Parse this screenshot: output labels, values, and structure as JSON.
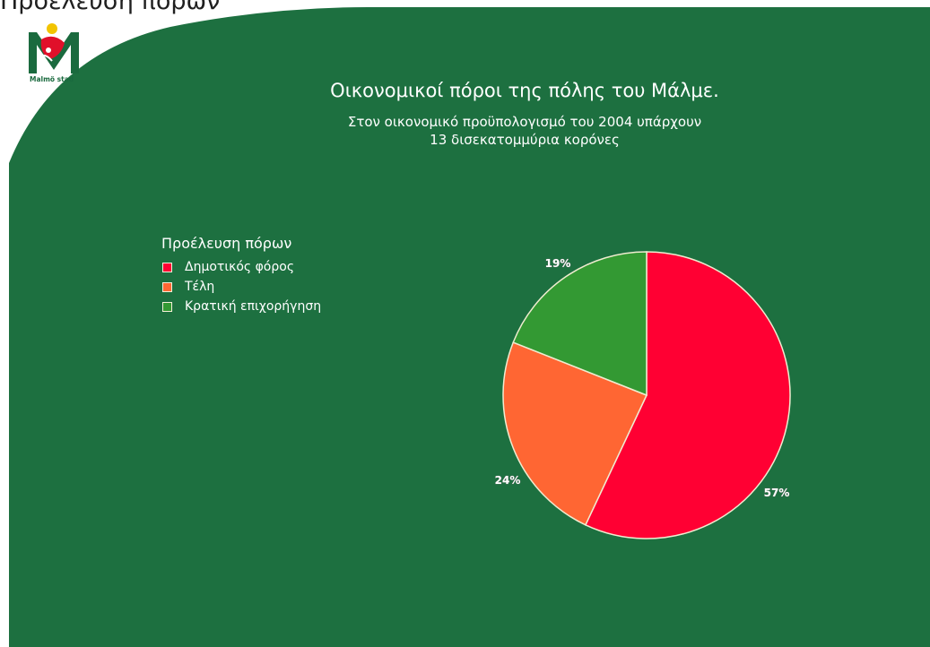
{
  "page_heading": "Προέλευση πόρων",
  "logo": {
    "text": "Malmö stad"
  },
  "colors": {
    "slide_background": "#1d7040",
    "slice_1": "#ff0033",
    "slice_2": "#ff6633",
    "slice_3": "#339933",
    "slice_border": "#f0ecd0"
  },
  "chart_data": {
    "type": "pie",
    "title": "Οικονομικοί πόροι της πόλης του Μάλμε.",
    "subtitle_lines": [
      "Στον οικονομικό προϋπολογισμό του 2004 υπάρχουν",
      "13 δισεκατομμύρια κορόνες"
    ],
    "legend_title": "Προέλευση πόρων",
    "legend_placement": "left",
    "slices": [
      {
        "label": "Δημοτικός φόρος",
        "value": 57,
        "value_label": "57%",
        "color": "#ff0033"
      },
      {
        "label": "Τέλη",
        "value": 24,
        "value_label": "24%",
        "color": "#ff6633"
      },
      {
        "label": "Κρατική επιχορήγηση",
        "value": 19,
        "value_label": "19%",
        "color": "#339933"
      }
    ]
  }
}
